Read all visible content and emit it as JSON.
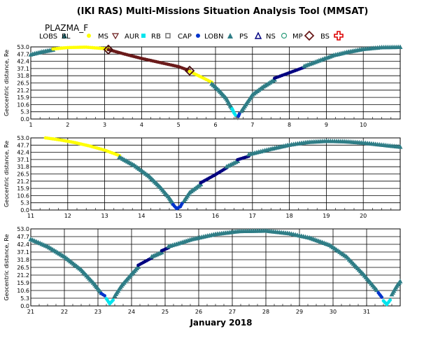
{
  "title": "(IKI RAS) Multi-Missions Situation Analysis Tool (MMSAT)",
  "mission": "PLAZMA_F",
  "xlabel": "January 2018",
  "legend": [
    {
      "label": "LOBS",
      "color": "#2e7d86",
      "marker": "tri"
    },
    {
      "label": "BL",
      "color": "#ffff00",
      "marker": "dot"
    },
    {
      "label": "MS",
      "color": "#6a1a1a",
      "marker": "tri-down"
    },
    {
      "label": "AUR",
      "color": "#00e5ee",
      "marker": "square"
    },
    {
      "label": "RB",
      "color": "#777777",
      "marker": "square-open"
    },
    {
      "label": "CAP",
      "color": "#0033cc",
      "marker": "dot"
    },
    {
      "label": "LOBN",
      "color": "#2e7d86",
      "marker": "tri"
    },
    {
      "label": "PS",
      "color": "#000080",
      "marker": "tri-open"
    },
    {
      "label": "NS",
      "color": "#2e9d7d",
      "marker": "circle-open"
    },
    {
      "label": "MP",
      "color": "#6a1a1a",
      "marker": "diamond-open"
    },
    {
      "label": "BS",
      "color": "#dd0000",
      "marker": "cross-open"
    }
  ],
  "chart_data": [
    {
      "type": "scatter",
      "ylabel": "Geocentric distance, Re",
      "xlim": [
        1,
        11
      ],
      "ylim": [
        0,
        53
      ],
      "x_ticks": [
        1,
        2,
        3,
        4,
        5,
        6,
        7,
        8,
        9,
        10
      ],
      "y_ticks": [
        0.0,
        5.3,
        10.6,
        15.9,
        21.2,
        26.5,
        31.8,
        37.1,
        42.4,
        47.7,
        53.0
      ],
      "segments": [
        {
          "region": "LOBS",
          "color": "#2e7d86",
          "points": [
            [
              1.0,
              47.5
            ],
            [
              1.3,
              49.5
            ],
            [
              1.6,
              51.0
            ]
          ]
        },
        {
          "region": "BL",
          "color": "#ffff00",
          "points": [
            [
              1.6,
              51.5
            ],
            [
              2.0,
              52.5
            ],
            [
              2.5,
              52.8
            ],
            [
              3.1,
              51.5
            ]
          ]
        },
        {
          "region": "MS",
          "color": "#6a1a1a",
          "points": [
            [
              3.1,
              51.0
            ],
            [
              3.5,
              48.0
            ],
            [
              4.0,
              44.5
            ],
            [
              4.5,
              41.5
            ],
            [
              5.0,
              38.5
            ],
            [
              5.3,
              35.5
            ]
          ]
        },
        {
          "region": "BL",
          "color": "#ffff00",
          "points": [
            [
              5.3,
              35.0
            ],
            [
              5.6,
              31.0
            ],
            [
              5.9,
              27.0
            ]
          ]
        },
        {
          "region": "LOBS",
          "color": "#2e7d86",
          "points": [
            [
              5.9,
              26.0
            ],
            [
              6.1,
              21.0
            ],
            [
              6.3,
              15.0
            ],
            [
              6.4,
              10.0
            ],
            [
              6.45,
              8.0
            ]
          ]
        },
        {
          "region": "AUR",
          "color": "#00e5ee",
          "points": [
            [
              6.45,
              7.5
            ],
            [
              6.5,
              4.5
            ],
            [
              6.55,
              2.5
            ]
          ]
        },
        {
          "region": "RB",
          "color": "#777777",
          "points": [
            [
              6.58,
              1.0
            ],
            [
              6.6,
              0.5
            ]
          ]
        },
        {
          "region": "CAP",
          "color": "#0033cc",
          "points": [
            [
              6.62,
              2.0
            ],
            [
              6.65,
              4.0
            ]
          ]
        },
        {
          "region": "LOBN",
          "color": "#2e7d86",
          "points": [
            [
              6.7,
              6.0
            ],
            [
              6.85,
              12.0
            ],
            [
              7.0,
              18.0
            ],
            [
              7.3,
              24.0
            ],
            [
              7.6,
              29.0
            ]
          ]
        },
        {
          "region": "PS",
          "color": "#000080",
          "points": [
            [
              7.6,
              30.0
            ],
            [
              8.0,
              34.0
            ],
            [
              8.4,
              38.0
            ]
          ]
        },
        {
          "region": "LOBN",
          "color": "#2e7d86",
          "points": [
            [
              8.4,
              39.0
            ],
            [
              8.8,
              43.0
            ],
            [
              9.2,
              47.0
            ],
            [
              9.6,
              49.5
            ],
            [
              10.0,
              51.5
            ],
            [
              10.5,
              52.8
            ],
            [
              11.0,
              53.0
            ]
          ]
        }
      ],
      "markers": [
        {
          "region": "MP",
          "x": 3.1,
          "y": 51.0
        },
        {
          "region": "MP",
          "x": 5.3,
          "y": 35.5
        }
      ]
    },
    {
      "type": "scatter",
      "ylabel": "Geocentric distance, Re",
      "xlim": [
        11,
        21
      ],
      "ylim": [
        0,
        53
      ],
      "x_ticks": [
        11,
        12,
        13,
        14,
        15,
        16,
        17,
        18,
        19,
        20
      ],
      "y_ticks": [
        0.0,
        5.3,
        10.6,
        15.9,
        21.2,
        26.5,
        31.8,
        37.1,
        42.4,
        47.7,
        53.0
      ],
      "segments": [
        {
          "region": "BL",
          "color": "#ffff00",
          "points": [
            [
              11.4,
              53.0
            ],
            [
              11.8,
              51.5
            ],
            [
              12.2,
              49.5
            ],
            [
              12.6,
              47.0
            ],
            [
              13.0,
              44.0
            ],
            [
              13.4,
              40.0
            ]
          ]
        },
        {
          "region": "LOBS",
          "color": "#2e7d86",
          "points": [
            [
              13.4,
              39.0
            ],
            [
              13.8,
              33.0
            ],
            [
              14.2,
              25.0
            ],
            [
              14.5,
              17.0
            ],
            [
              14.75,
              9.0
            ],
            [
              14.85,
              5.0
            ]
          ]
        },
        {
          "region": "CAP",
          "color": "#0033cc",
          "points": [
            [
              14.85,
              4.0
            ],
            [
              14.95,
              1.0
            ],
            [
              15.05,
              2.5
            ],
            [
              15.1,
              5.0
            ]
          ]
        },
        {
          "region": "LOBN",
          "color": "#2e7d86",
          "points": [
            [
              15.15,
              7.0
            ],
            [
              15.3,
              13.0
            ],
            [
              15.6,
              19.0
            ]
          ]
        },
        {
          "region": "PS",
          "color": "#000080",
          "points": [
            [
              15.6,
              20.0
            ],
            [
              16.0,
              26.0
            ],
            [
              16.3,
              31.0
            ]
          ]
        },
        {
          "region": "LOBN",
          "color": "#2e7d86",
          "points": [
            [
              16.3,
              32.0
            ],
            [
              16.6,
              36.0
            ]
          ]
        },
        {
          "region": "PS",
          "color": "#000080",
          "points": [
            [
              16.6,
              37.0
            ],
            [
              16.9,
              39.5
            ]
          ]
        },
        {
          "region": "LOBN",
          "color": "#2e7d86",
          "points": [
            [
              16.9,
              41.0
            ],
            [
              17.5,
              45.0
            ],
            [
              18.0,
              48.0
            ],
            [
              18.5,
              50.0
            ],
            [
              19.0,
              50.8
            ],
            [
              19.5,
              50.5
            ],
            [
              20.0,
              49.5
            ],
            [
              20.5,
              48.0
            ],
            [
              21.0,
              46.5
            ]
          ]
        }
      ],
      "markers": []
    },
    {
      "type": "scatter",
      "ylabel": "Geocentric distance, Re",
      "xlim": [
        21,
        32
      ],
      "ylim": [
        0,
        53
      ],
      "x_ticks": [
        21,
        22,
        23,
        24,
        25,
        26,
        27,
        28,
        29,
        30,
        31
      ],
      "y_ticks": [
        0.0,
        5.3,
        10.6,
        15.9,
        21.2,
        26.5,
        31.8,
        37.1,
        42.4,
        47.7,
        53.0
      ],
      "segments": [
        {
          "region": "LOBS",
          "color": "#2e7d86",
          "points": [
            [
              21.0,
              46.0
            ],
            [
              21.5,
              41.0
            ],
            [
              22.0,
              34.0
            ],
            [
              22.5,
              25.0
            ],
            [
              22.9,
              15.0
            ],
            [
              23.1,
              9.0
            ]
          ]
        },
        {
          "region": "CAP",
          "color": "#0033cc",
          "points": [
            [
              23.1,
              8.5
            ],
            [
              23.2,
              7.0
            ]
          ]
        },
        {
          "region": "AUR",
          "color": "#00e5ee",
          "points": [
            [
              23.25,
              5.0
            ],
            [
              23.35,
              1.5
            ],
            [
              23.45,
              4.0
            ]
          ]
        },
        {
          "region": "LOBN",
          "color": "#2e7d86",
          "points": [
            [
              23.5,
              7.0
            ],
            [
              23.7,
              14.0
            ],
            [
              24.0,
              22.0
            ],
            [
              24.2,
              27.0
            ]
          ]
        },
        {
          "region": "PS",
          "color": "#000080",
          "points": [
            [
              24.2,
              28.0
            ],
            [
              24.6,
              33.0
            ]
          ]
        },
        {
          "region": "LOBN",
          "color": "#2e7d86",
          "points": [
            [
              24.6,
              34.0
            ],
            [
              24.9,
              37.0
            ]
          ]
        },
        {
          "region": "PS",
          "color": "#000080",
          "points": [
            [
              24.9,
              38.0
            ],
            [
              25.1,
              40.0
            ]
          ]
        },
        {
          "region": "LOBN",
          "color": "#2e7d86",
          "points": [
            [
              25.1,
              41.0
            ],
            [
              25.8,
              46.0
            ],
            [
              26.5,
              49.5
            ],
            [
              27.2,
              51.5
            ],
            [
              28.0,
              51.8
            ],
            [
              28.7,
              50.0
            ],
            [
              29.3,
              47.0
            ],
            [
              29.9,
              42.0
            ],
            [
              30.4,
              34.0
            ],
            [
              30.9,
              22.0
            ],
            [
              31.3,
              11.0
            ]
          ]
        },
        {
          "region": "CAP",
          "color": "#0033cc",
          "points": [
            [
              31.35,
              9.0
            ],
            [
              31.45,
              6.0
            ]
          ]
        },
        {
          "region": "AUR",
          "color": "#00e5ee",
          "points": [
            [
              31.5,
              3.5
            ],
            [
              31.6,
              1.0
            ],
            [
              31.7,
              4.0
            ]
          ]
        },
        {
          "region": "LOBN",
          "color": "#2e7d86",
          "points": [
            [
              31.75,
              8.0
            ],
            [
              31.9,
              14.0
            ],
            [
              32.0,
              17.0
            ]
          ]
        }
      ],
      "markers": []
    }
  ]
}
